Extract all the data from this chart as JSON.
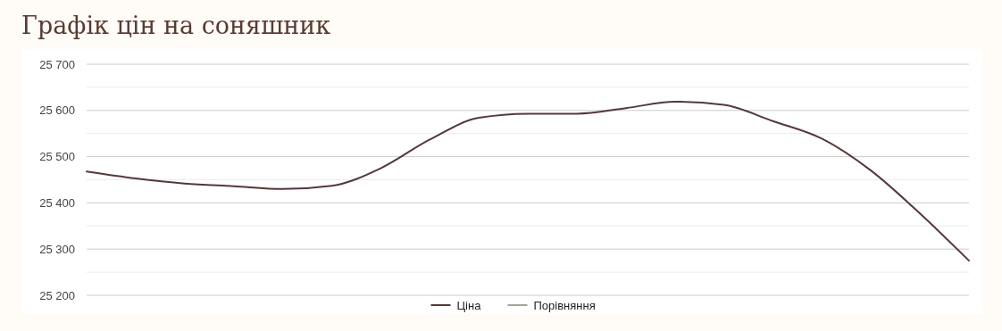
{
  "chart_data": {
    "type": "line",
    "title": "Графік цін на соняшник",
    "categories": [
      null,
      null,
      null,
      null,
      null,
      null,
      null,
      null,
      null,
      null,
      null,
      null,
      null,
      null,
      null,
      null,
      null,
      null,
      null
    ],
    "series": [
      {
        "name": "Ціна",
        "color": "#55383a",
        "values": [
          25468,
          25453,
          25442,
          25436,
          25430,
          25437,
          25475,
          25537,
          25584,
          25593,
          25593,
          25605,
          25619,
          25612,
          25577,
          25539,
          25470,
          25377,
          25275
        ]
      },
      {
        "name": "Порівняння",
        "color": "#a3a593",
        "values": [
          null,
          null,
          null,
          null,
          null,
          null,
          null,
          null,
          null,
          null,
          null,
          null,
          null,
          null,
          null,
          null,
          null,
          null,
          null
        ]
      }
    ],
    "ylim": [
      25200,
      25700
    ],
    "yticks": [
      {
        "value": 25200,
        "label": "25 200"
      },
      {
        "value": 25250,
        "label": null
      },
      {
        "value": 25300,
        "label": "25 300"
      },
      {
        "value": 25350,
        "label": null
      },
      {
        "value": 25400,
        "label": "25 400"
      },
      {
        "value": 25450,
        "label": null
      },
      {
        "value": 25500,
        "label": "25 500"
      },
      {
        "value": 25550,
        "label": null
      },
      {
        "value": 25600,
        "label": "25 600"
      },
      {
        "value": 25650,
        "label": null
      },
      {
        "value": 25700,
        "label": "25 700"
      }
    ],
    "grid": "y",
    "legend": "bottom",
    "marker": "none",
    "line_style": "solid"
  }
}
